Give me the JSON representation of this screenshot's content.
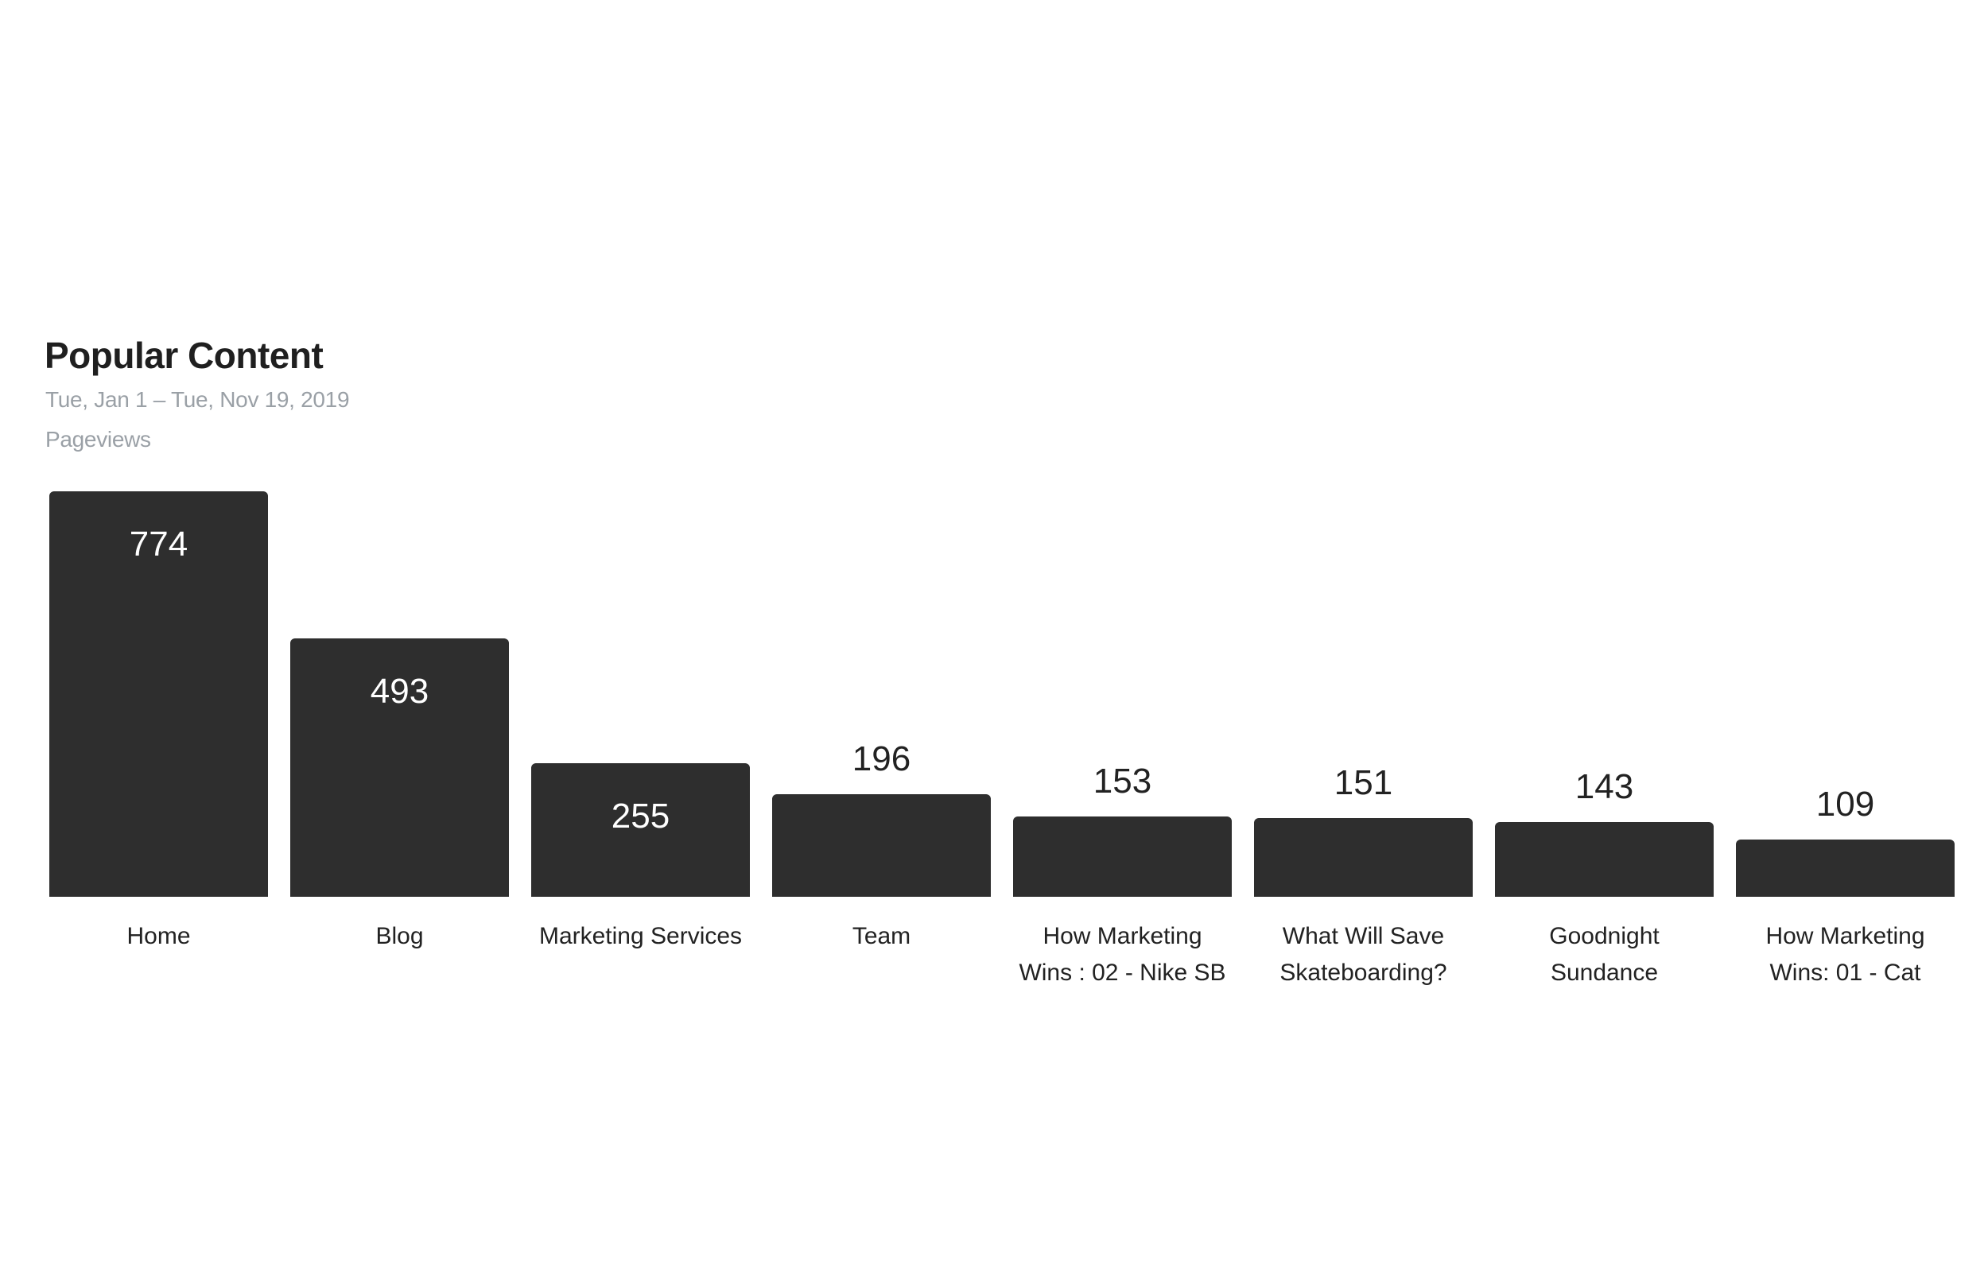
{
  "page": {
    "background": "#ffffff"
  },
  "chart_data": {
    "type": "bar",
    "title": "Popular Content",
    "subtitle": "Tue, Jan 1 – Tue, Nov 19, 2019",
    "ylabel": "Pageviews",
    "categories": [
      "Home",
      "Blog",
      "Marketing Services",
      "Team",
      "How Marketing Wins : 02 - Nike SB",
      "What Will Save Skateboarding?",
      "Goodnight Sundance",
      "How Marketing Wins: 01 - Cat"
    ],
    "category_lines": [
      [
        "Home"
      ],
      [
        "Blog"
      ],
      [
        "Marketing Services"
      ],
      [
        "Team"
      ],
      [
        "How Marketing",
        "Wins : 02 - Nike SB"
      ],
      [
        "What Will Save",
        "Skateboarding?"
      ],
      [
        "Goodnight",
        "Sundance"
      ],
      [
        "How Marketing",
        "Wins: 01 - Cat"
      ]
    ],
    "values": [
      774,
      493,
      255,
      196,
      153,
      151,
      143,
      109
    ],
    "value_label_placement": [
      "inside",
      "inside",
      "inside",
      "above",
      "above",
      "above",
      "above",
      "above"
    ],
    "ylim": [
      0,
      774
    ],
    "grid": false,
    "legend": false,
    "axes_visible": false,
    "colors": {
      "bar": "#2e2e2e",
      "value_inside": "#ffffff",
      "value_outside": "#222222",
      "category_label": "#222222",
      "title": "#1f1f1f",
      "subtitle": "#9aa0a6"
    }
  }
}
